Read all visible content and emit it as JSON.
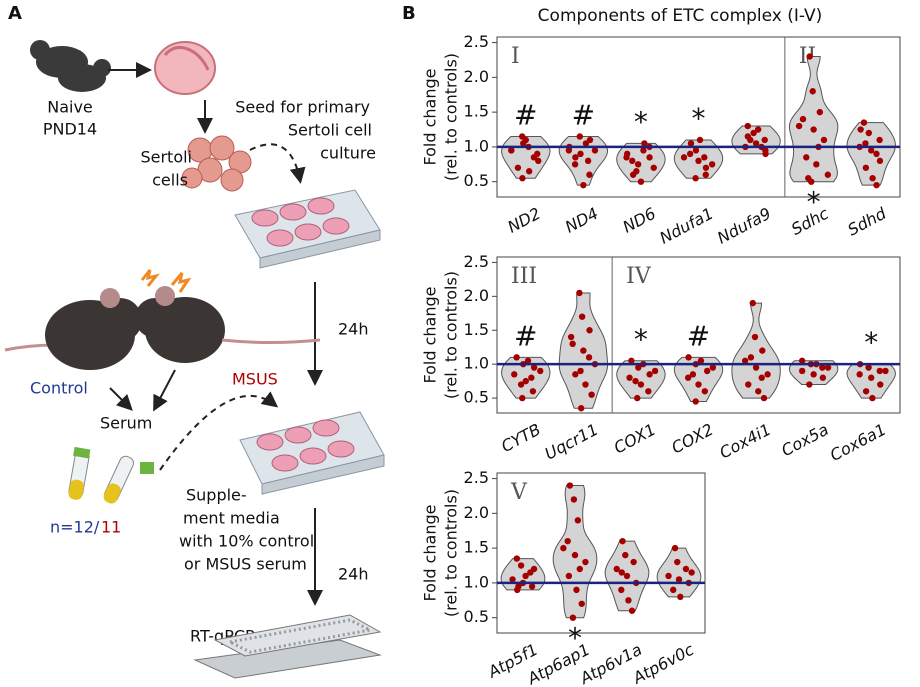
{
  "diagram": {
    "panel_label": "A",
    "naive": [
      "Naive",
      "PND14"
    ],
    "seed": [
      "Seed for primary",
      "Sertoli cell",
      "culture"
    ],
    "sertoli": [
      "Sertoli",
      "cells"
    ],
    "time_1": "24h",
    "control": "Control",
    "msus": "MSUS",
    "serum": "Serum",
    "n_control": "n=12/",
    "n_msus": "11",
    "supplement": [
      "Supple-",
      "ment media",
      "with 10% control",
      "or MSUS serum"
    ],
    "time_2": "24h",
    "readout": "RT-qPCR"
  },
  "panel_b": {
    "label": "B",
    "title": "Components of ETC complex (I-V)"
  },
  "chart_data": [
    {
      "type": "violin",
      "ylabel": [
        "Fold change",
        "(rel. to controls)"
      ],
      "categories": [
        "ND2",
        "ND4",
        "ND6",
        "Ndufa1",
        "Ndufa9",
        "Sdhc",
        "Sdhd"
      ],
      "values": [
        [
          0.95,
          1.05,
          0.85,
          0.7,
          1.1,
          0.9,
          0.55,
          1.0,
          0.8,
          1.15,
          0.65,
          0.95
        ],
        [
          1.0,
          0.9,
          1.1,
          0.75,
          0.45,
          0.95,
          0.85,
          1.05,
          0.6,
          1.15,
          0.8,
          0.95
        ],
        [
          0.9,
          0.75,
          0.85,
          0.6,
          0.5,
          1.0,
          0.8,
          0.95,
          0.7,
          0.65,
          1.05,
          0.85
        ],
        [
          0.85,
          0.95,
          0.7,
          1.05,
          0.8,
          0.6,
          0.9,
          1.1,
          0.75,
          0.55,
          0.85
        ],
        [
          1.3,
          1.2,
          1.1,
          1.0,
          1.05,
          0.95,
          1.15,
          1.25,
          0.9,
          1.1,
          1.0
        ],
        [
          2.3,
          1.8,
          1.5,
          1.4,
          1.25,
          1.1,
          0.85,
          0.75,
          0.6,
          0.55,
          1.0,
          1.3,
          0.5
        ],
        [
          1.35,
          1.2,
          1.1,
          1.0,
          0.95,
          0.8,
          0.7,
          0.55,
          0.45,
          1.05,
          0.9,
          1.25
        ]
      ],
      "sections": [
        {
          "label": "I",
          "start": 0
        },
        {
          "label": "II",
          "start": 5
        }
      ],
      "annotations": [
        {
          "text": "#",
          "position": "above"
        },
        {
          "text": "#",
          "position": "above"
        },
        {
          "text": "*",
          "position": "above"
        },
        {
          "text": "*",
          "position": "above"
        },
        null,
        {
          "text": "*",
          "position": "below"
        },
        null
      ],
      "ylim": [
        0.28,
        2.58
      ],
      "yticks": [
        0.5,
        {
          "value": 1,
          "label": "1.0"
        },
        1.5,
        {
          "value": 2,
          "label": "2.0"
        },
        2.5
      ],
      "reference_line": 1,
      "line_color": "#1a237e",
      "violin_color": "#d4d4d4",
      "point_color": "#a50000"
    },
    {
      "type": "violin",
      "ylabel": [
        "Fold change",
        "(rel. to controls)"
      ],
      "categories": [
        "CYTB",
        "Uqcr11",
        "COX1",
        "COX2",
        "Cox4i1",
        "Cox5a",
        "Cox6a1"
      ],
      "values": [
        [
          1.1,
          1.0,
          0.95,
          0.85,
          0.75,
          0.6,
          0.5,
          1.05,
          0.9,
          0.7,
          0.8
        ],
        [
          2.05,
          1.7,
          1.5,
          1.3,
          1.2,
          1.0,
          0.85,
          0.7,
          0.55,
          0.35,
          1.1,
          1.4,
          0.9
        ],
        [
          1.05,
          0.95,
          0.85,
          0.8,
          0.7,
          0.6,
          0.5,
          1.0,
          0.9,
          0.75
        ],
        [
          1.1,
          1.0,
          0.9,
          0.8,
          0.7,
          0.6,
          0.45,
          1.05,
          0.95,
          0.85
        ],
        [
          1.9,
          1.4,
          1.2,
          1.05,
          0.95,
          0.85,
          0.7,
          0.6,
          0.5,
          1.1,
          0.8
        ],
        [
          1.05,
          1.0,
          0.95,
          0.9,
          0.85,
          0.8,
          0.7,
          1.0,
          0.95
        ],
        [
          1.0,
          0.95,
          0.9,
          0.85,
          0.8,
          0.7,
          0.6,
          0.5,
          0.9
        ]
      ],
      "sections": [
        {
          "label": "III",
          "start": 0
        },
        {
          "label": "IV",
          "start": 2
        }
      ],
      "annotations": [
        {
          "text": "#",
          "position": "above"
        },
        null,
        {
          "text": "*",
          "position": "above"
        },
        {
          "text": "#",
          "position": "above"
        },
        null,
        null,
        {
          "text": "*",
          "position": "above"
        }
      ],
      "ylim": [
        0.28,
        2.58
      ],
      "yticks": [
        0.5,
        {
          "value": 1,
          "label": "1.0"
        },
        1.5,
        {
          "value": 2,
          "label": "2.0"
        },
        2.5
      ],
      "reference_line": 1,
      "line_color": "#1a237e",
      "violin_color": "#d4d4d4",
      "point_color": "#a50000"
    },
    {
      "type": "violin",
      "ylabel": [
        "Fold change",
        "(rel. to controls)"
      ],
      "categories": [
        "Atp5f1",
        "Atp6ap1",
        "Atp6v1a",
        "Atp6v0c"
      ],
      "values": [
        [
          1.35,
          1.25,
          1.15,
          1.05,
          1.0,
          0.95,
          0.9,
          1.1,
          1.2,
          0.95
        ],
        [
          2.4,
          2.2,
          1.9,
          1.6,
          1.4,
          1.3,
          1.1,
          0.9,
          0.7,
          0.5,
          1.2,
          1.5
        ],
        [
          1.6,
          1.4,
          1.3,
          1.2,
          1.1,
          1.0,
          0.9,
          0.75,
          0.6,
          1.15
        ],
        [
          1.5,
          1.3,
          1.2,
          1.1,
          1.05,
          1.0,
          0.9,
          0.8,
          1.15
        ]
      ],
      "sections": [
        {
          "label": "V",
          "start": 0
        }
      ],
      "annotations": [
        null,
        {
          "text": "*",
          "position": "below"
        },
        null,
        null
      ],
      "ylim": [
        0.28,
        2.58
      ],
      "yticks": [
        0.5,
        {
          "value": 1,
          "label": "1.0"
        },
        1.5,
        {
          "value": 2,
          "label": "2.0"
        },
        2.5
      ],
      "reference_line": 1,
      "line_color": "#1a237e",
      "violin_color": "#d4d4d4",
      "point_color": "#a50000"
    }
  ]
}
